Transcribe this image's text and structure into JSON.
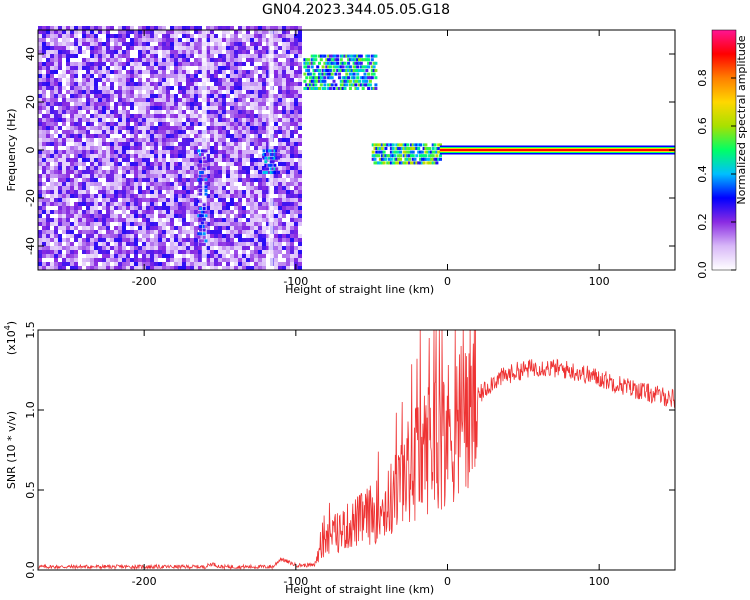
{
  "title": "GN04.2023.344.05.05.G18",
  "chart_data": [
    {
      "type": "heatmap",
      "xlabel": "Height of straight line (km)",
      "ylabel": "Frequency (Hz)",
      "xlim": [
        -270,
        150
      ],
      "ylim": [
        -50,
        50
      ],
      "xticks": [
        -200,
        -100,
        0,
        100
      ],
      "yticks": [
        -40,
        -20,
        0,
        20,
        40
      ],
      "colorbar": {
        "label": "Normalized spectral amplitude",
        "range": [
          0,
          1
        ],
        "ticks": [
          "0.0",
          "0.2",
          "0.4",
          "0.6",
          "0.8"
        ],
        "colors": [
          "#ffffff",
          "#d8b8f8",
          "#8a2be2",
          "#0000ff",
          "#00bfff",
          "#00ff66",
          "#a8e000",
          "#ffd700",
          "#ff7f00",
          "#ff0000",
          "#ff1493"
        ]
      },
      "regions": [
        {
          "name": "noise",
          "x": [
            -270,
            -97
          ],
          "y": [
            -50,
            50
          ],
          "level": 0.25
        },
        {
          "name": "upper-band",
          "x": [
            -95,
            -48
          ],
          "y": [
            25,
            40
          ],
          "level": 0.45
        },
        {
          "name": "weak-trail",
          "x": [
            -165,
            -160
          ],
          "y": [
            -40,
            0
          ],
          "level": 0.3
        },
        {
          "name": "side-blob",
          "x": [
            -122,
            -112
          ],
          "y": [
            -10,
            0
          ],
          "level": 0.35
        },
        {
          "name": "carrier-onset",
          "x": [
            -50,
            -5
          ],
          "y": [
            -6,
            2
          ],
          "level": 0.5
        },
        {
          "name": "carrier",
          "x": [
            -5,
            150
          ],
          "y": [
            -1,
            1
          ],
          "level": 1.0
        }
      ]
    },
    {
      "type": "line",
      "xlabel": "Height of straight line (km)",
      "ylabel": "SNR (10 * v/v)",
      "yscale_label": "(x10",
      "yscale_exp": "4",
      "yscale_close": ")",
      "xlim": [
        -270,
        150
      ],
      "ylim": [
        0,
        1.5
      ],
      "xticks": [
        -200,
        -100,
        0,
        100
      ],
      "yticks": [
        "0.0",
        "0.5",
        "1.0",
        "1.5"
      ],
      "color": "#ee3333",
      "profile": [
        [
          -270,
          0.02
        ],
        [
          -160,
          0.02
        ],
        [
          -155,
          0.04
        ],
        [
          -150,
          0.02
        ],
        [
          -115,
          0.02
        ],
        [
          -110,
          0.07
        ],
        [
          -100,
          0.03
        ],
        [
          -88,
          0.03
        ],
        [
          -80,
          0.2
        ],
        [
          -60,
          0.3
        ],
        [
          -40,
          0.4
        ],
        [
          -30,
          0.55
        ],
        [
          -20,
          0.7
        ],
        [
          -10,
          0.8
        ],
        [
          0,
          0.85
        ],
        [
          10,
          0.95
        ],
        [
          20,
          1.08
        ],
        [
          30,
          1.18
        ],
        [
          45,
          1.24
        ],
        [
          60,
          1.27
        ],
        [
          80,
          1.25
        ],
        [
          100,
          1.2
        ],
        [
          120,
          1.14
        ],
        [
          135,
          1.1
        ],
        [
          150,
          1.07
        ]
      ],
      "spikes": [
        {
          "x": -18,
          "y": 1.5
        },
        {
          "x": -12,
          "y": 1.45
        },
        {
          "x": -20,
          "y": 1.32
        },
        {
          "x": -30,
          "y": 1.05
        }
      ]
    }
  ]
}
